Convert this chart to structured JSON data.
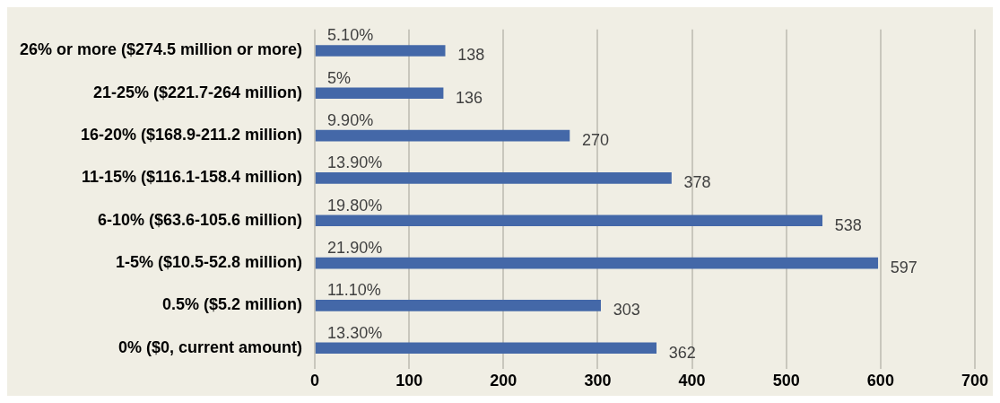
{
  "chart_data": {
    "type": "bar",
    "orientation": "horizontal",
    "categories": [
      "26% or more ($274.5 million or more)",
      "21-25% ($221.7-264 million)",
      "16-20% ($168.9-211.2 million)",
      "11-15% ($116.1-158.4 million)",
      "6-10% ($63.6-105.6 million)",
      "1-5% ($10.5-52.8 million)",
      "0.5% ($5.2 million)",
      "0% ($0, current amount)"
    ],
    "values": [
      138,
      136,
      270,
      378,
      538,
      597,
      303,
      362
    ],
    "color": "#4468a8",
    "xlim": [
      0,
      700
    ],
    "xticks": [
      0,
      100,
      200,
      300,
      400,
      500,
      600,
      700
    ],
    "grid": "x",
    "legend": false,
    "data_labels": true,
    "annotations": [
      "5.10%",
      "5%",
      "9.90%",
      "13.90%",
      "19.80%",
      "21.90%",
      "11.10%",
      "13.30%"
    ]
  }
}
